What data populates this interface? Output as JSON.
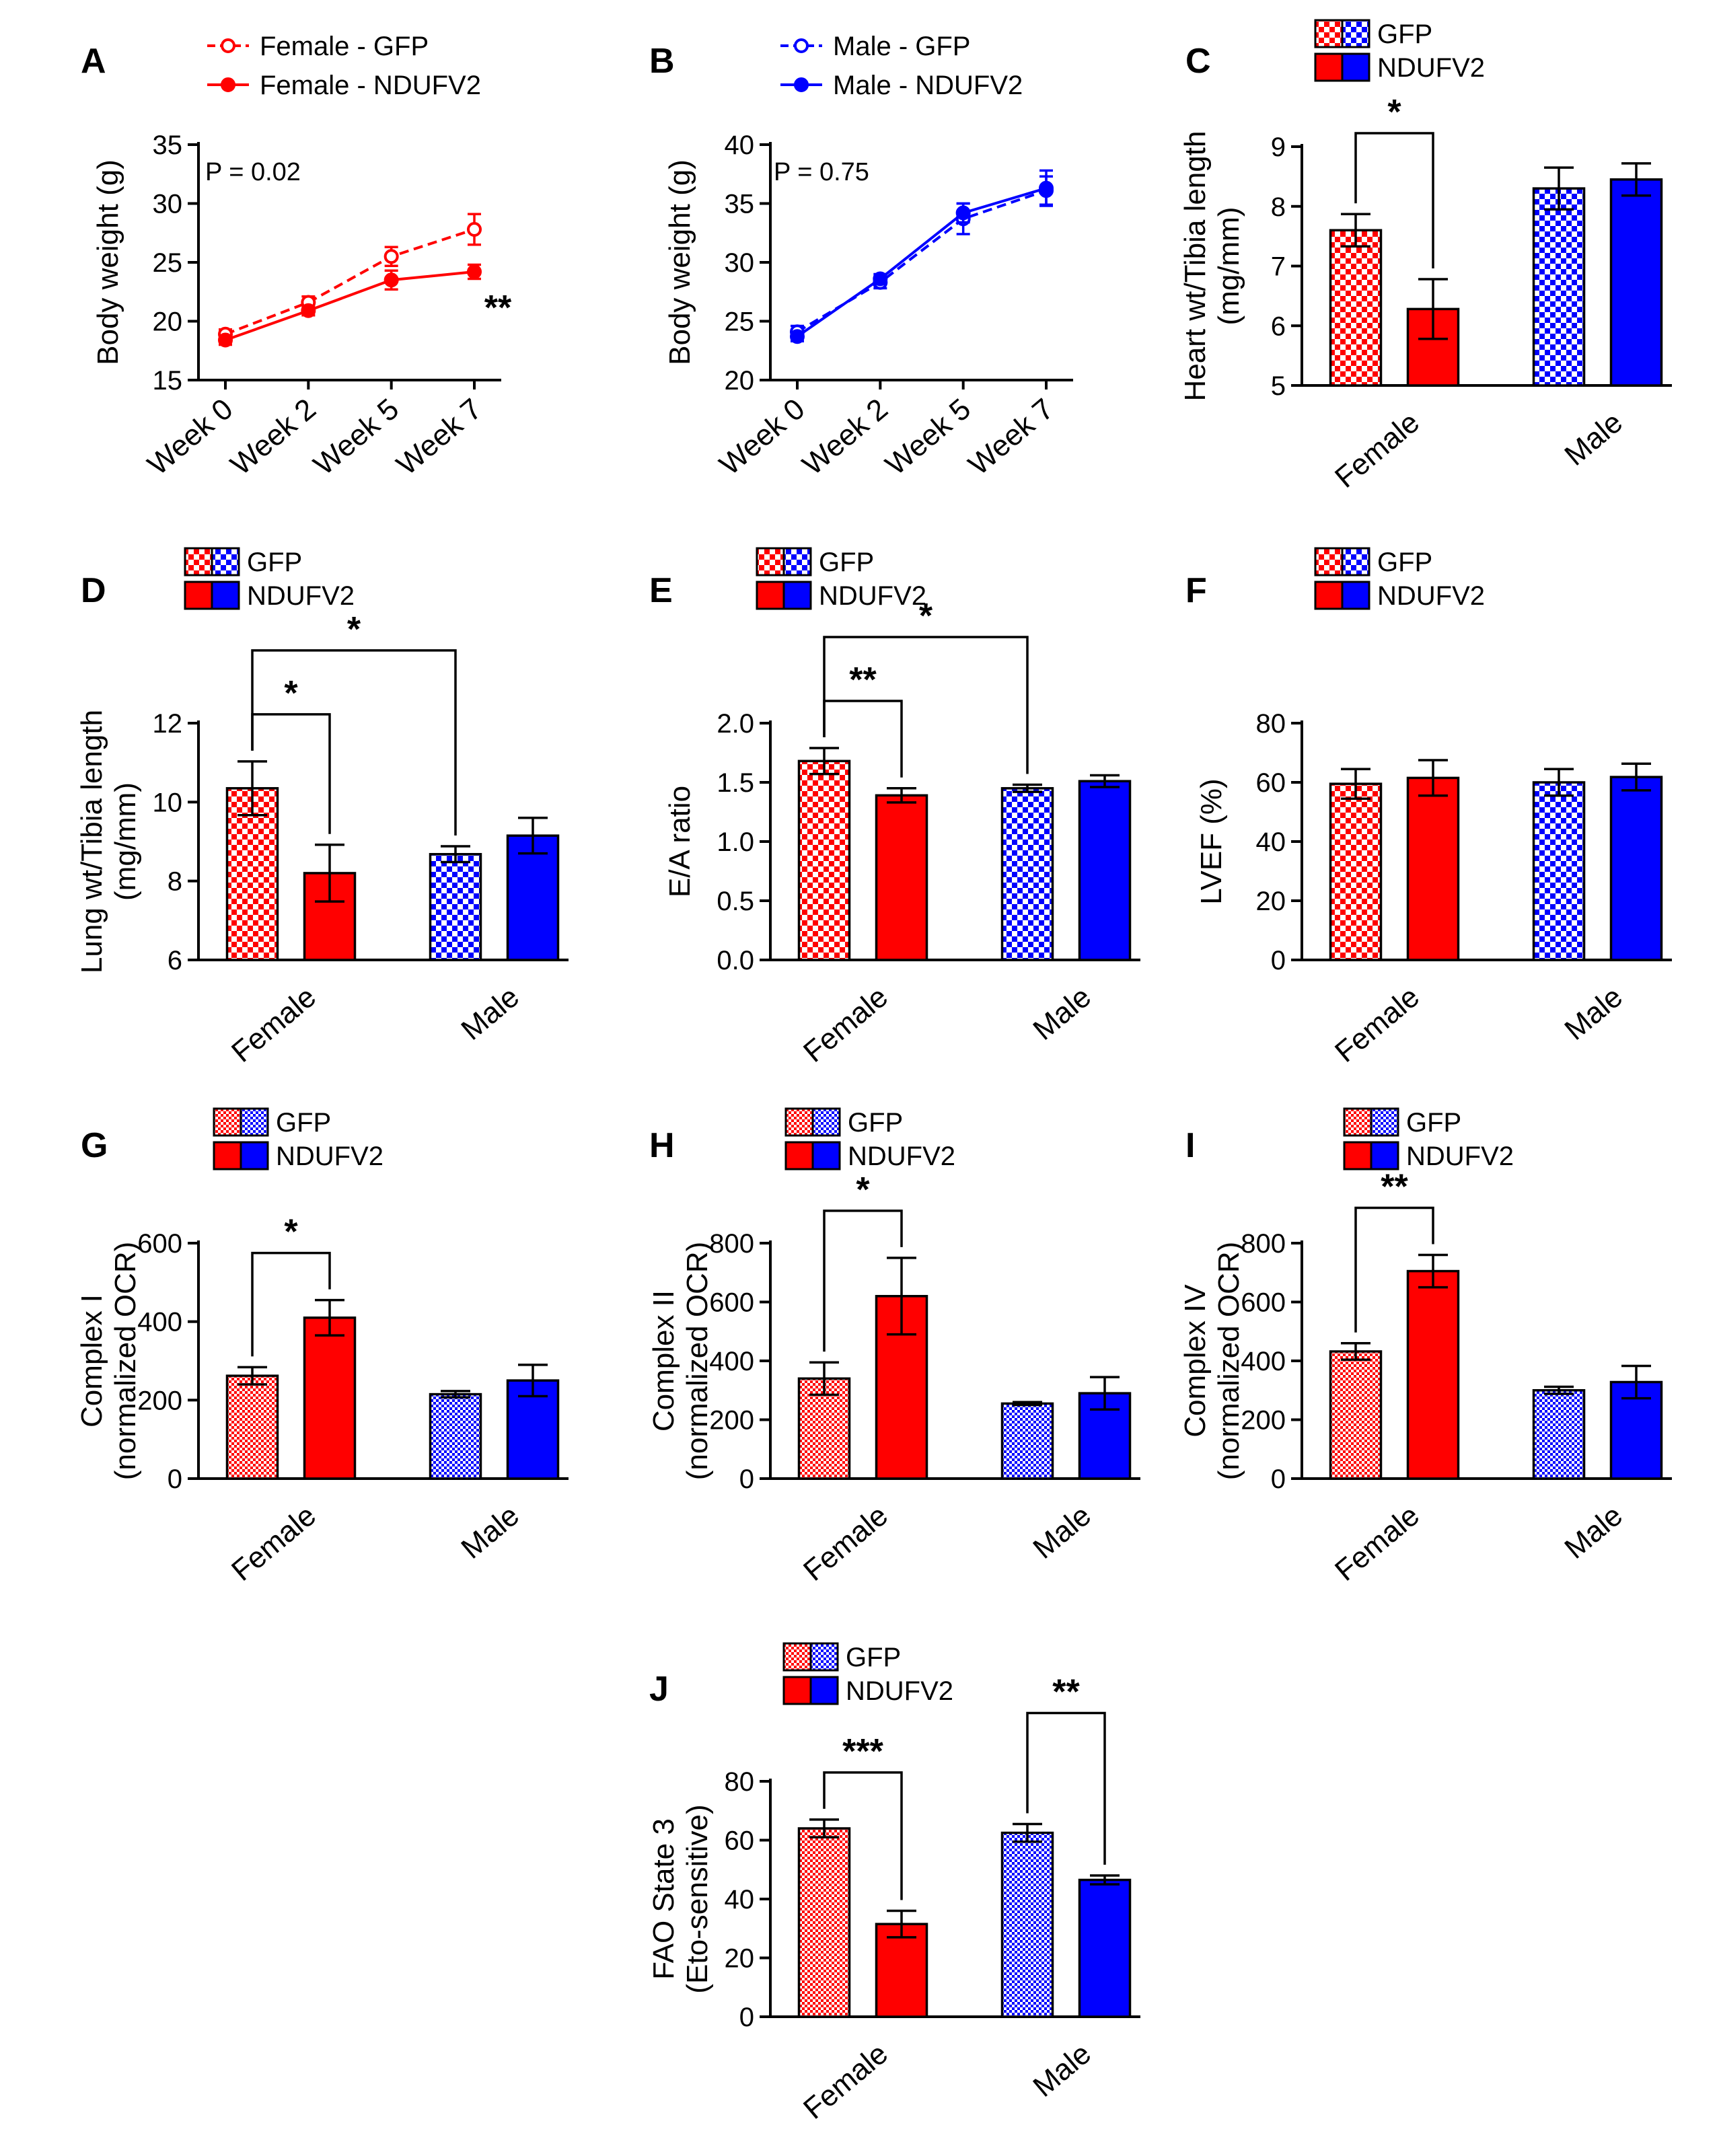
{
  "colors": {
    "female": "#ff0000",
    "male": "#0000ff",
    "axis": "#000000"
  },
  "charts": [
    {
      "id": "A",
      "type": "line",
      "panel_label": "A",
      "xlabel": "",
      "ylabel": "Body weight (g)",
      "ylim": [
        15,
        35
      ],
      "yticks": [
        15,
        20,
        25,
        30,
        35
      ],
      "categories": [
        "Week 0",
        "Week 2",
        "Week 5",
        "Week 7"
      ],
      "annotation": "P = 0.02",
      "sig_label": "**",
      "series": [
        {
          "name": "Female - GFP",
          "values": [
            18.9,
            21.6,
            25.5,
            27.8
          ],
          "errors": [
            0.4,
            0.5,
            0.8,
            1.3
          ],
          "color": "#ff0000",
          "style": "dashed-open"
        },
        {
          "name": "Female - NDUFV2",
          "values": [
            18.4,
            20.9,
            23.5,
            24.2
          ],
          "errors": [
            0.4,
            0.4,
            0.8,
            0.6
          ],
          "color": "#ff0000",
          "style": "solid-filled"
        }
      ]
    },
    {
      "id": "B",
      "type": "line",
      "panel_label": "B",
      "xlabel": "",
      "ylabel": "Body weight (g)",
      "ylim": [
        20,
        40
      ],
      "yticks": [
        20,
        25,
        30,
        35,
        40
      ],
      "categories": [
        "Week 0",
        "Week 2",
        "Week 5",
        "Week 7"
      ],
      "annotation": "P = 0.75",
      "series": [
        {
          "name": "Male - GFP",
          "values": [
            24.1,
            28.3,
            33.7,
            36.1
          ],
          "errors": [
            0.5,
            0.5,
            1.3,
            1.2
          ],
          "color": "#0000ff",
          "style": "dashed-open"
        },
        {
          "name": "Male - NDUFV2",
          "values": [
            23.7,
            28.6,
            34.2,
            36.3
          ],
          "errors": [
            0.4,
            0.4,
            0.8,
            1.5
          ],
          "color": "#0000ff",
          "style": "solid-filled"
        }
      ]
    },
    {
      "id": "C",
      "type": "bar",
      "panel_label": "C",
      "ylabel": "Heart wt/Tibia length (mg/mm)",
      "ylim": [
        5,
        9
      ],
      "yticks": [
        5,
        6,
        7,
        8,
        9
      ],
      "categories": [
        "Female",
        "Male"
      ],
      "legend": [
        "GFP",
        "NDUFV2"
      ],
      "bars": [
        {
          "group": "Female",
          "series": "GFP",
          "value": 7.6,
          "error": 0.27
        },
        {
          "group": "Female",
          "series": "NDUFV2",
          "value": 6.28,
          "error": 0.5
        },
        {
          "group": "Male",
          "series": "GFP",
          "value": 8.3,
          "error": 0.35
        },
        {
          "group": "Male",
          "series": "NDUFV2",
          "value": 8.45,
          "error": 0.27
        }
      ],
      "comparisons": [
        {
          "from": 0,
          "to": 1,
          "label": "*"
        }
      ]
    },
    {
      "id": "D",
      "type": "bar",
      "panel_label": "D",
      "ylabel": "Lung wt/Tibia length (mg/mm)",
      "ylim": [
        6,
        12
      ],
      "yticks": [
        6,
        8,
        10,
        12
      ],
      "categories": [
        "Female",
        "Male"
      ],
      "legend": [
        "GFP",
        "NDUFV2"
      ],
      "bars": [
        {
          "group": "Female",
          "series": "GFP",
          "value": 10.35,
          "error": 0.68
        },
        {
          "group": "Female",
          "series": "NDUFV2",
          "value": 8.2,
          "error": 0.72
        },
        {
          "group": "Male",
          "series": "GFP",
          "value": 8.68,
          "error": 0.2
        },
        {
          "group": "Male",
          "series": "NDUFV2",
          "value": 9.15,
          "error": 0.45
        }
      ],
      "comparisons": [
        {
          "from": 0,
          "to": 1,
          "label": "*"
        },
        {
          "from": 0,
          "to": 2,
          "label": "*"
        }
      ]
    },
    {
      "id": "E",
      "type": "bar",
      "panel_label": "E",
      "ylabel": "E/A ratio",
      "ylim": [
        0,
        2.0
      ],
      "yticks": [
        0.0,
        0.5,
        1.0,
        1.5,
        2.0
      ],
      "tick_decimals": 1,
      "categories": [
        "Female",
        "Male"
      ],
      "legend": [
        "GFP",
        "NDUFV2"
      ],
      "bars": [
        {
          "group": "Female",
          "series": "GFP",
          "value": 1.68,
          "error": 0.11
        },
        {
          "group": "Female",
          "series": "NDUFV2",
          "value": 1.39,
          "error": 0.06
        },
        {
          "group": "Male",
          "series": "GFP",
          "value": 1.45,
          "error": 0.03
        },
        {
          "group": "Male",
          "series": "NDUFV2",
          "value": 1.51,
          "error": 0.05
        }
      ],
      "comparisons": [
        {
          "from": 0,
          "to": 1,
          "label": "**"
        },
        {
          "from": 0,
          "to": 2,
          "label": "*"
        }
      ]
    },
    {
      "id": "F",
      "type": "bar",
      "panel_label": "F",
      "ylabel": "LVEF (%)",
      "ylim": [
        0,
        80
      ],
      "yticks": [
        0,
        20,
        40,
        60,
        80
      ],
      "categories": [
        "Female",
        "Male"
      ],
      "legend": [
        "GFP",
        "NDUFV2"
      ],
      "bars": [
        {
          "group": "Female",
          "series": "GFP",
          "value": 59.5,
          "error": 5.0
        },
        {
          "group": "Female",
          "series": "NDUFV2",
          "value": 61.5,
          "error": 6.0
        },
        {
          "group": "Male",
          "series": "GFP",
          "value": 60.0,
          "error": 4.5
        },
        {
          "group": "Male",
          "series": "NDUFV2",
          "value": 61.8,
          "error": 4.5
        }
      ],
      "comparisons": []
    },
    {
      "id": "G",
      "type": "bar",
      "panel_label": "G",
      "ylabel": "Complex I (normalized OCR)",
      "ylim": [
        0,
        600
      ],
      "yticks": [
        0,
        200,
        400,
        600
      ],
      "categories": [
        "Female",
        "Male"
      ],
      "legend": [
        "GFP",
        "NDUFV2"
      ],
      "bars": [
        {
          "group": "Female",
          "series": "GFP",
          "value": 262,
          "error": 22
        },
        {
          "group": "Female",
          "series": "NDUFV2",
          "value": 410,
          "error": 45
        },
        {
          "group": "Male",
          "series": "GFP",
          "value": 215,
          "error": 8
        },
        {
          "group": "Male",
          "series": "NDUFV2",
          "value": 250,
          "error": 40
        }
      ],
      "comparisons": [
        {
          "from": 0,
          "to": 1,
          "label": "*"
        }
      ]
    },
    {
      "id": "H",
      "type": "bar",
      "panel_label": "H",
      "ylabel": "Complex II (normalized OCR)",
      "ylim": [
        0,
        800
      ],
      "yticks": [
        0,
        200,
        400,
        600,
        800
      ],
      "categories": [
        "Female",
        "Male"
      ],
      "legend": [
        "GFP",
        "NDUFV2"
      ],
      "bars": [
        {
          "group": "Female",
          "series": "GFP",
          "value": 340,
          "error": 55
        },
        {
          "group": "Female",
          "series": "NDUFV2",
          "value": 620,
          "error": 130
        },
        {
          "group": "Male",
          "series": "GFP",
          "value": 255,
          "error": 5
        },
        {
          "group": "Male",
          "series": "NDUFV2",
          "value": 290,
          "error": 55
        }
      ],
      "comparisons": [
        {
          "from": 0,
          "to": 1,
          "label": "*"
        }
      ]
    },
    {
      "id": "I",
      "type": "bar",
      "panel_label": "I",
      "ylabel": "Complex IV (normalized OCR)",
      "ylim": [
        0,
        800
      ],
      "yticks": [
        0,
        200,
        400,
        600,
        800
      ],
      "categories": [
        "Female",
        "Male"
      ],
      "legend": [
        "GFP",
        "NDUFV2"
      ],
      "bars": [
        {
          "group": "Female",
          "series": "GFP",
          "value": 432,
          "error": 28
        },
        {
          "group": "Female",
          "series": "NDUFV2",
          "value": 705,
          "error": 55
        },
        {
          "group": "Male",
          "series": "GFP",
          "value": 300,
          "error": 12
        },
        {
          "group": "Male",
          "series": "NDUFV2",
          "value": 328,
          "error": 55
        }
      ],
      "comparisons": [
        {
          "from": 0,
          "to": 1,
          "label": "**"
        }
      ]
    },
    {
      "id": "J",
      "type": "bar",
      "panel_label": "J",
      "ylabel": "FAO State 3 (Eto-sensitive)",
      "ylim": [
        0,
        80
      ],
      "yticks": [
        0,
        20,
        40,
        60,
        80
      ],
      "categories": [
        "Female",
        "Male"
      ],
      "legend": [
        "GFP",
        "NDUFV2"
      ],
      "bars": [
        {
          "group": "Female",
          "series": "GFP",
          "value": 64,
          "error": 3
        },
        {
          "group": "Female",
          "series": "NDUFV2",
          "value": 31.5,
          "error": 4.5
        },
        {
          "group": "Male",
          "series": "GFP",
          "value": 62.5,
          "error": 3
        },
        {
          "group": "Male",
          "series": "NDUFV2",
          "value": 46.5,
          "error": 1.5
        }
      ],
      "comparisons": [
        {
          "from": 0,
          "to": 1,
          "label": "***"
        },
        {
          "from": 2,
          "to": 3,
          "label": "**"
        }
      ]
    }
  ]
}
